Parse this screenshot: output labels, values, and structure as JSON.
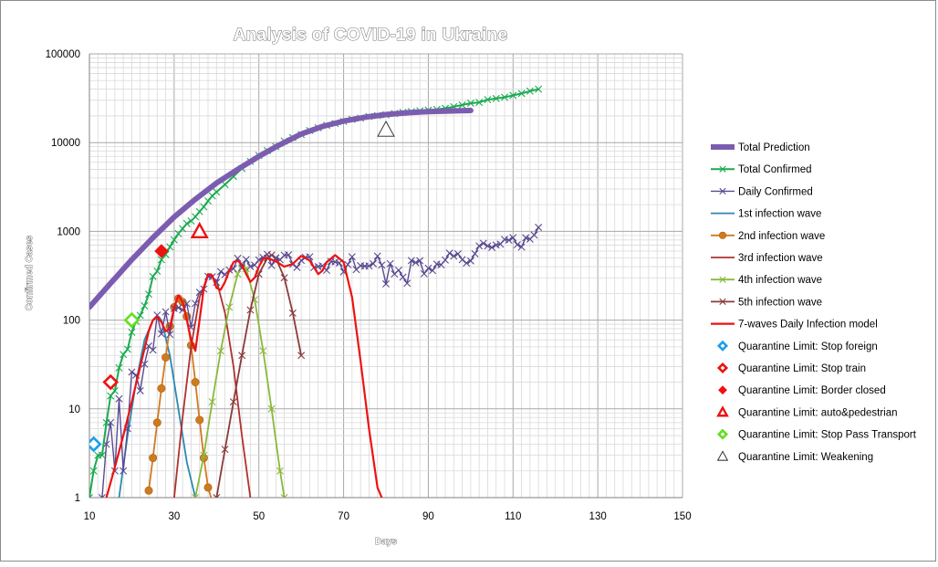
{
  "chart_data": {
    "type": "line",
    "title": "Analysis of COVID-19 in Ukraine",
    "xlabel": "Days",
    "ylabel": "Confirmed Cases",
    "xlim": [
      10,
      150
    ],
    "ylim": [
      1,
      100000
    ],
    "yscale": "log",
    "grid": true,
    "legend_position": "right",
    "x_ticks": [
      10,
      30,
      50,
      70,
      90,
      110,
      130,
      150
    ],
    "y_ticks": [
      1,
      10,
      100,
      1000,
      10000,
      100000
    ],
    "x_tick_labels": [
      "10",
      "30",
      "50",
      "70",
      "90",
      "110",
      "130",
      "150"
    ],
    "y_tick_labels": [
      "1",
      "10",
      "100",
      "1000",
      "10000",
      "100000"
    ],
    "series": [
      {
        "name": "Total Prediction",
        "color": "#7c5cb0",
        "marker": "none",
        "width": 6,
        "x": [
          10,
          15,
          20,
          25,
          30,
          35,
          40,
          45,
          50,
          55,
          60,
          65,
          70,
          75,
          80,
          85,
          90,
          95,
          100
        ],
        "y": [
          140,
          260,
          480,
          850,
          1450,
          2300,
          3500,
          5000,
          7000,
          9500,
          12500,
          15200,
          17500,
          19300,
          20700,
          21700,
          22300,
          22700,
          23000
        ]
      },
      {
        "name": "Total Confirmed",
        "color": "#1aaa50",
        "marker": "x",
        "width": 2,
        "x": [
          10,
          11,
          12,
          13,
          14,
          15,
          16,
          17,
          18,
          19,
          20,
          21,
          22,
          23,
          24,
          25,
          26,
          27,
          28,
          29,
          30,
          31,
          32,
          33,
          34,
          35,
          36,
          37,
          38,
          39,
          40,
          42,
          44,
          46,
          48,
          50,
          52,
          54,
          56,
          58,
          60,
          62,
          64,
          66,
          68,
          70,
          72,
          74,
          76,
          78,
          80,
          82,
          84,
          86,
          88,
          90,
          92,
          94,
          96,
          98,
          100,
          102,
          104,
          106,
          108,
          110,
          112,
          114,
          116
        ],
        "y": [
          1,
          2,
          3,
          3,
          7,
          14,
          16,
          29,
          41,
          47,
          73,
          97,
          113,
          145,
          196,
          310,
          356,
          480,
          549,
          669,
          804,
          942,
          1072,
          1225,
          1308,
          1462,
          1668,
          1892,
          2203,
          2511,
          2777,
          3372,
          4161,
          5106,
          6125,
          7170,
          8125,
          9009,
          10406,
          11411,
          12331,
          13691,
          14710,
          15648,
          16425,
          17330,
          18291,
          18876,
          19706,
          20148,
          20580,
          21245,
          21905,
          22382,
          22811,
          23204,
          23672,
          24340,
          25411,
          26514,
          27856,
          28381,
          30506,
          31392,
          32476,
          34063,
          35825,
          38074,
          40008
        ]
      },
      {
        "name": "Daily Confirmed",
        "color": "#5a4a90",
        "marker": "x",
        "width": 1.4,
        "x": [
          13,
          14,
          15,
          16,
          17,
          18,
          19,
          20,
          21,
          22,
          23,
          24,
          25,
          26,
          27,
          28,
          29,
          30,
          31,
          32,
          33,
          34,
          35,
          36,
          37,
          38,
          39,
          40,
          41,
          42,
          43,
          44,
          45,
          46,
          47,
          48,
          49,
          50,
          51,
          52,
          53,
          54,
          55,
          56,
          57,
          58,
          59,
          60,
          61,
          62,
          63,
          64,
          65,
          66,
          67,
          68,
          69,
          70,
          71,
          72,
          73,
          74,
          75,
          76,
          77,
          78,
          79,
          80,
          81,
          82,
          83,
          84,
          85,
          86,
          87,
          88,
          89,
          90,
          91,
          92,
          93,
          94,
          95,
          96,
          97,
          98,
          99,
          100,
          101,
          102,
          103,
          104,
          105,
          106,
          107,
          108,
          109,
          110,
          111,
          112,
          113,
          114,
          115,
          116
        ],
        "y": [
          1,
          4,
          7,
          2,
          13,
          2,
          6,
          26,
          24,
          16,
          32,
          51,
          46,
          114,
          70,
          124,
          69,
          135,
          138,
          130,
          153,
          83,
          154,
          206,
          224,
          311,
          308,
          266,
          352,
          326,
          368,
          380,
          497,
          388,
          482,
          401,
          417,
          477,
          508,
          550,
          413,
          504,
          478,
          539,
          544,
          426,
          393,
          470,
          510,
          517,
          391,
          401,
          409,
          364,
          458,
          453,
          441,
          350,
          423,
          517,
          371,
          410,
          406,
          408,
          432,
          527,
          417,
          256,
          433,
          331,
          365,
          305,
          260,
          469,
          445,
          467,
          333,
          385,
          362,
          428,
          420,
          476,
          568,
          526,
          558,
          480,
          439,
          465,
          560,
          686,
          733,
          685,
          659,
          702,
          718,
          811,
          796,
          850,
          707,
          667,
          847,
          818,
          909,
          1109
        ]
      },
      {
        "name": "1st infection wave",
        "color": "#2a8ab0",
        "marker": "none",
        "width": 1.8,
        "x": [
          17,
          19,
          21,
          23,
          25,
          26,
          27,
          29,
          31,
          33,
          35
        ],
        "y": [
          1,
          5,
          20,
          60,
          100,
          110,
          100,
          40,
          10,
          2.5,
          1
        ]
      },
      {
        "name": "2nd infection wave",
        "color": "#d07a20",
        "marker": "o",
        "width": 1.8,
        "x": [
          24,
          25,
          26,
          27,
          28,
          29,
          30,
          31,
          32,
          33,
          34,
          35,
          36,
          37,
          38,
          39
        ],
        "y": [
          1.2,
          2.8,
          7,
          17,
          38,
          85,
          140,
          175,
          160,
          110,
          52,
          20,
          7.5,
          2.8,
          1.3,
          0.9
        ]
      },
      {
        "name": "3rd infection wave",
        "color": "#b03030",
        "marker": "none",
        "width": 1.8,
        "x": [
          30,
          32,
          34,
          36,
          38,
          40,
          42,
          44,
          46,
          48
        ],
        "y": [
          1,
          8,
          50,
          180,
          320,
          280,
          120,
          30,
          5,
          1
        ]
      },
      {
        "name": "4th infection wave",
        "color": "#8ab83a",
        "marker": "x",
        "width": 1.8,
        "x": [
          35,
          37,
          39,
          41,
          43,
          45,
          46,
          47,
          49,
          51,
          53,
          55,
          56
        ],
        "y": [
          1,
          3,
          12,
          45,
          140,
          330,
          430,
          380,
          170,
          45,
          10,
          2,
          1
        ]
      },
      {
        "name": "5th infection wave",
        "color": "#8a3a3a",
        "marker": "x",
        "width": 1.8,
        "x": [
          40,
          42,
          44,
          46,
          48,
          50,
          52,
          53,
          54,
          56,
          58,
          60
        ],
        "y": [
          1,
          3.5,
          12,
          40,
          130,
          330,
          500,
          540,
          500,
          300,
          120,
          40
        ]
      },
      {
        "name": "7-waves Daily Infection model",
        "color": "#ee1111",
        "marker": "none",
        "width": 2.2,
        "x": [
          14,
          16,
          18,
          20,
          22,
          24,
          25,
          26,
          27,
          28,
          29,
          30,
          31,
          32,
          33,
          34,
          35,
          36,
          37,
          38,
          39,
          40,
          41,
          42,
          43,
          44,
          45,
          46,
          47,
          48,
          49,
          50,
          51,
          52,
          54,
          56,
          58,
          60,
          62,
          64,
          65,
          66,
          68,
          70,
          72,
          74,
          76,
          78,
          79
        ],
        "y": [
          1,
          2.2,
          5,
          12,
          30,
          75,
          100,
          110,
          95,
          75,
          80,
          140,
          190,
          160,
          100,
          60,
          45,
          100,
          230,
          330,
          320,
          230,
          220,
          270,
          360,
          450,
          470,
          420,
          330,
          270,
          300,
          400,
          490,
          500,
          460,
          400,
          430,
          530,
          470,
          330,
          360,
          450,
          540,
          450,
          180,
          35,
          6,
          1.3,
          1
        ]
      },
      {
        "name": "Quarantine Limit: Stop foreign",
        "color": "#1aa0e8",
        "marker": "diamond-outline",
        "x": [
          11
        ],
        "y": [
          4
        ]
      },
      {
        "name": "Quarantine Limit: Stop train",
        "color": "#ee1111",
        "marker": "diamond-outline",
        "x": [
          15
        ],
        "y": [
          20
        ]
      },
      {
        "name": "Quarantine Limit: Border closed",
        "color": "#ee1111",
        "marker": "diamond-filled",
        "x": [
          27
        ],
        "y": [
          600
        ]
      },
      {
        "name": "Quarantine Limit: auto&pedestrian",
        "color": "#ee1111",
        "marker": "triangle-outline",
        "x": [
          36
        ],
        "y": [
          1000
        ]
      },
      {
        "name": "Quarantine Limit: Stop Pass Transport",
        "color": "#66dd22",
        "marker": "diamond-outline",
        "x": [
          20
        ],
        "y": [
          100
        ]
      },
      {
        "name": "Quarantine Limit: Weakening",
        "color": "#222222",
        "marker": "triangle-thin",
        "x": [
          80
        ],
        "y": [
          14000
        ]
      }
    ]
  }
}
